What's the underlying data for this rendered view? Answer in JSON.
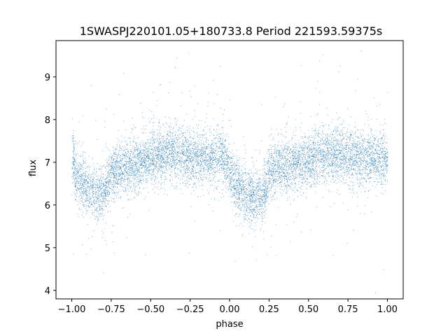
{
  "chart_data": {
    "type": "scatter",
    "title": "1SWASPJ220101.05+180733.8 Period 221593.59375s",
    "xlabel": "phase",
    "ylabel": "flux",
    "xlim": [
      -1.1,
      1.1
    ],
    "ylim": [
      3.8,
      9.85
    ],
    "xticks": [
      -1.0,
      -0.75,
      -0.5,
      -0.25,
      0.0,
      0.25,
      0.5,
      0.75,
      1.0
    ],
    "xtick_labels": [
      "−1.00",
      "−0.75",
      "−0.50",
      "−0.25",
      "0.00",
      "0.25",
      "0.50",
      "0.75",
      "1.00"
    ],
    "yticks": [
      4,
      5,
      6,
      7,
      8,
      9
    ],
    "ytick_labels": [
      "4",
      "5",
      "6",
      "7",
      "8",
      "9"
    ],
    "grid": false,
    "marker_color": "#1f77b4",
    "series": [
      {
        "phase_range": [
          -1.0,
          1.0
        ],
        "trend": [
          {
            "phase": -1.0,
            "flux": 7.25
          },
          {
            "phase": -0.98,
            "flux": 6.7
          },
          {
            "phase": -0.9,
            "flux": 6.4
          },
          {
            "phase": -0.8,
            "flux": 6.2
          },
          {
            "phase": -0.75,
            "flux": 6.8
          },
          {
            "phase": -0.6,
            "flux": 6.95
          },
          {
            "phase": -0.5,
            "flux": 7.1
          },
          {
            "phase": -0.35,
            "flux": 7.25
          },
          {
            "phase": -0.2,
            "flux": 7.1
          },
          {
            "phase": -0.05,
            "flux": 7.15
          },
          {
            "phase": 0.0,
            "flux": 6.8
          },
          {
            "phase": 0.05,
            "flux": 6.4
          },
          {
            "phase": 0.15,
            "flux": 6.2
          },
          {
            "phase": 0.22,
            "flux": 6.2
          },
          {
            "phase": 0.25,
            "flux": 6.8
          },
          {
            "phase": 0.4,
            "flux": 6.95
          },
          {
            "phase": 0.5,
            "flux": 7.05
          },
          {
            "phase": 0.65,
            "flux": 7.25
          },
          {
            "phase": 0.8,
            "flux": 7.1
          },
          {
            "phase": 0.95,
            "flux": 7.1
          },
          {
            "phase": 1.0,
            "flux": 7.1
          }
        ]
      }
    ]
  }
}
